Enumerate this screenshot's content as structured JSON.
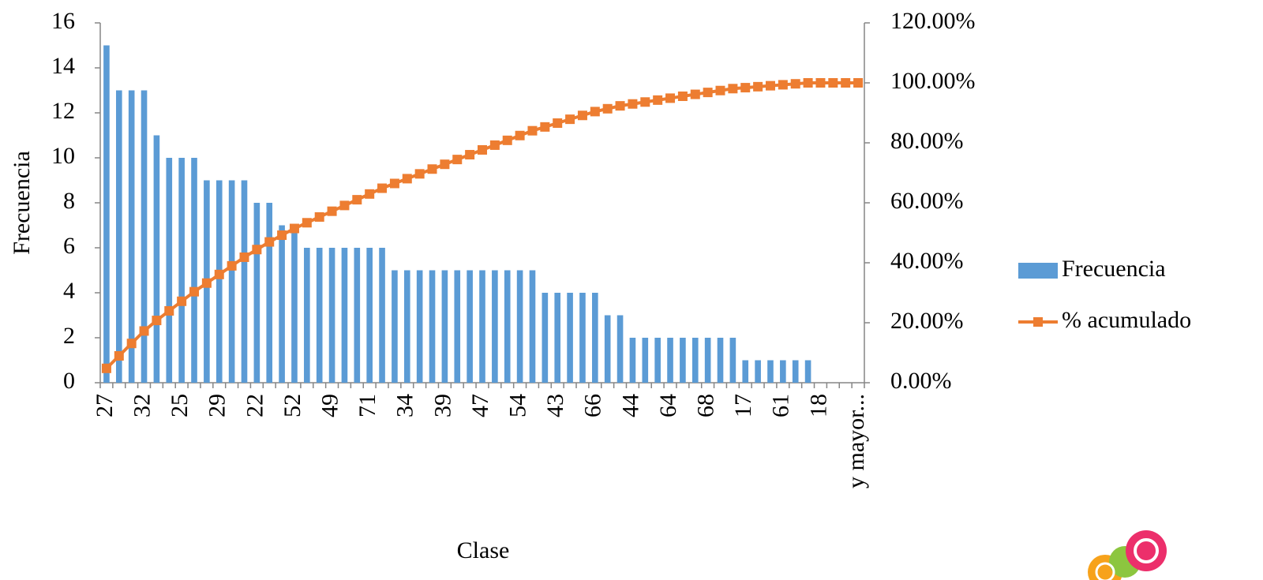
{
  "chart_data": {
    "type": "bar",
    "xlabel": "Clase",
    "ylabel": "Frecuencia",
    "categories": [
      "27",
      null,
      null,
      "32",
      null,
      null,
      "25",
      null,
      null,
      "29",
      null,
      null,
      "22",
      null,
      null,
      "52",
      null,
      null,
      "49",
      null,
      null,
      "71",
      null,
      null,
      "34",
      null,
      null,
      "39",
      null,
      null,
      "47",
      null,
      null,
      "54",
      null,
      null,
      "43",
      null,
      null,
      "66",
      null,
      null,
      "44",
      null,
      null,
      "64",
      null,
      null,
      "68",
      null,
      null,
      "17",
      null,
      null,
      "61",
      null,
      null,
      "18",
      null,
      null,
      "y mayor..."
    ],
    "series": [
      {
        "name": "Frecuencia",
        "color": "#5b9bd5",
        "values": [
          15,
          13,
          13,
          13,
          11,
          10,
          10,
          10,
          9,
          9,
          9,
          9,
          8,
          8,
          7,
          7,
          6,
          6,
          6,
          6,
          6,
          6,
          6,
          5,
          5,
          5,
          5,
          5,
          5,
          5,
          5,
          5,
          5,
          5,
          5,
          4,
          4,
          4,
          4,
          4,
          3,
          3,
          2,
          2,
          2,
          2,
          2,
          2,
          2,
          2,
          2,
          1,
          1,
          1,
          1,
          1,
          1,
          0,
          0,
          0,
          0
        ]
      },
      {
        "name": "% acumulado",
        "color": "#ed7d31",
        "type": "line",
        "axis": "y2",
        "values": [
          4.79,
          8.95,
          13.1,
          17.25,
          20.77,
          23.96,
          27.16,
          30.35,
          33.23,
          36.1,
          38.98,
          41.85,
          44.41,
          46.96,
          49.2,
          51.44,
          53.35,
          55.27,
          57.19,
          59.11,
          61.02,
          62.94,
          64.86,
          66.45,
          68.05,
          69.65,
          71.25,
          72.84,
          74.44,
          76.04,
          77.64,
          79.23,
          80.83,
          82.43,
          84.03,
          85.3,
          86.58,
          87.86,
          89.14,
          90.42,
          91.37,
          92.33,
          92.97,
          93.61,
          94.25,
          94.89,
          95.53,
          96.17,
          96.81,
          97.44,
          98.08,
          98.4,
          98.72,
          99.04,
          99.36,
          99.68,
          100,
          100,
          100,
          100,
          100
        ]
      }
    ],
    "ylim": [
      0,
      16
    ],
    "yticks": [
      0,
      2,
      4,
      6,
      8,
      10,
      12,
      14,
      16
    ],
    "y2lim": [
      0,
      120
    ],
    "y2ticks": [
      {
        "value": 0,
        "label": "0.00%"
      },
      {
        "value": 20,
        "label": "20.00%"
      },
      {
        "value": 40,
        "label": "40.00%"
      },
      {
        "value": 60,
        "label": "60.00%"
      },
      {
        "value": 80,
        "label": "80.00%"
      },
      {
        "value": 100,
        "label": "100.00%"
      },
      {
        "value": 120,
        "label": "120.00%"
      }
    ],
    "legend": "right"
  }
}
